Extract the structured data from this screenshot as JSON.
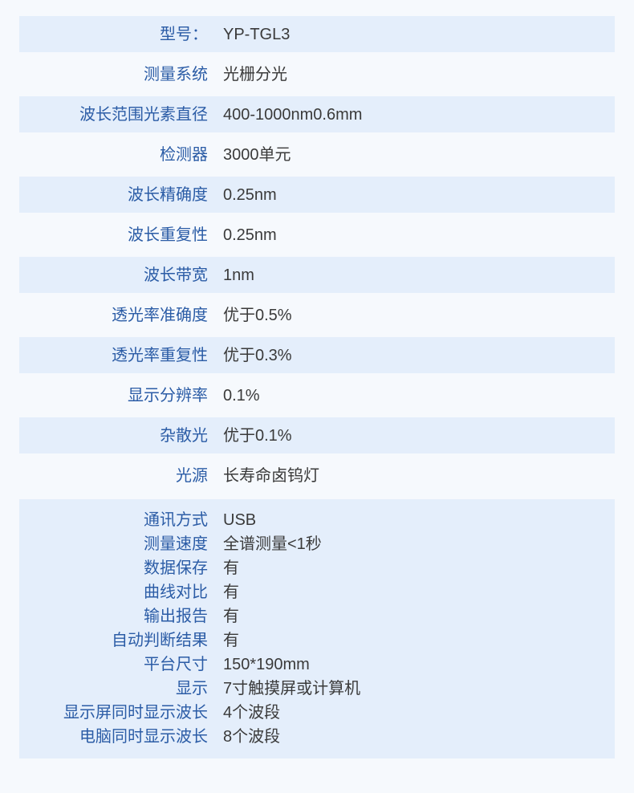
{
  "colors": {
    "page_bg": "#f6f9fd",
    "highlight_row_bg": "#e4eefb",
    "label_text": "#2b5ca6",
    "value_text": "#3a3a3a"
  },
  "spec_table": {
    "rows": [
      {
        "label": "型号：",
        "value": "YP-TGL3"
      },
      {
        "label": "测量系统",
        "value": "光栅分光"
      },
      {
        "label": "波长范围光素直径",
        "value": "400-1000nm0.6mm"
      },
      {
        "label": "检测器",
        "value": "3000单元"
      },
      {
        "label": "波长精确度",
        "value": "0.25nm"
      },
      {
        "label": "波长重复性",
        "value": "0.25nm"
      },
      {
        "label": "波长带宽",
        "value": "1nm"
      },
      {
        "label": "透光率准确度",
        "value": "优于0.5%"
      },
      {
        "label": "透光率重复性",
        "value": "优于0.3%"
      },
      {
        "label": "显示分辨率",
        "value": "0.1%"
      },
      {
        "label": "杂散光",
        "value": "优于0.1%"
      },
      {
        "label": "光源",
        "value": "长寿命卤钨灯"
      }
    ],
    "feature_block": {
      "rows": [
        {
          "label": "通讯方式",
          "value": "USB"
        },
        {
          "label": "测量速度",
          "value": "全谱测量<1秒"
        },
        {
          "label": "数据保存",
          "value": "有"
        },
        {
          "label": "曲线对比",
          "value": "有"
        },
        {
          "label": "输出报告",
          "value": "有"
        },
        {
          "label": "自动判断结果",
          "value": "有"
        },
        {
          "label": "平台尺寸",
          "value": "150*190mm"
        },
        {
          "label": "显示",
          "value": "7寸触摸屏或计算机"
        },
        {
          "label": "显示屏同时显示波长",
          "value": "4个波段"
        },
        {
          "label": "电脑同时显示波长",
          "value": "8个波段"
        }
      ]
    }
  }
}
